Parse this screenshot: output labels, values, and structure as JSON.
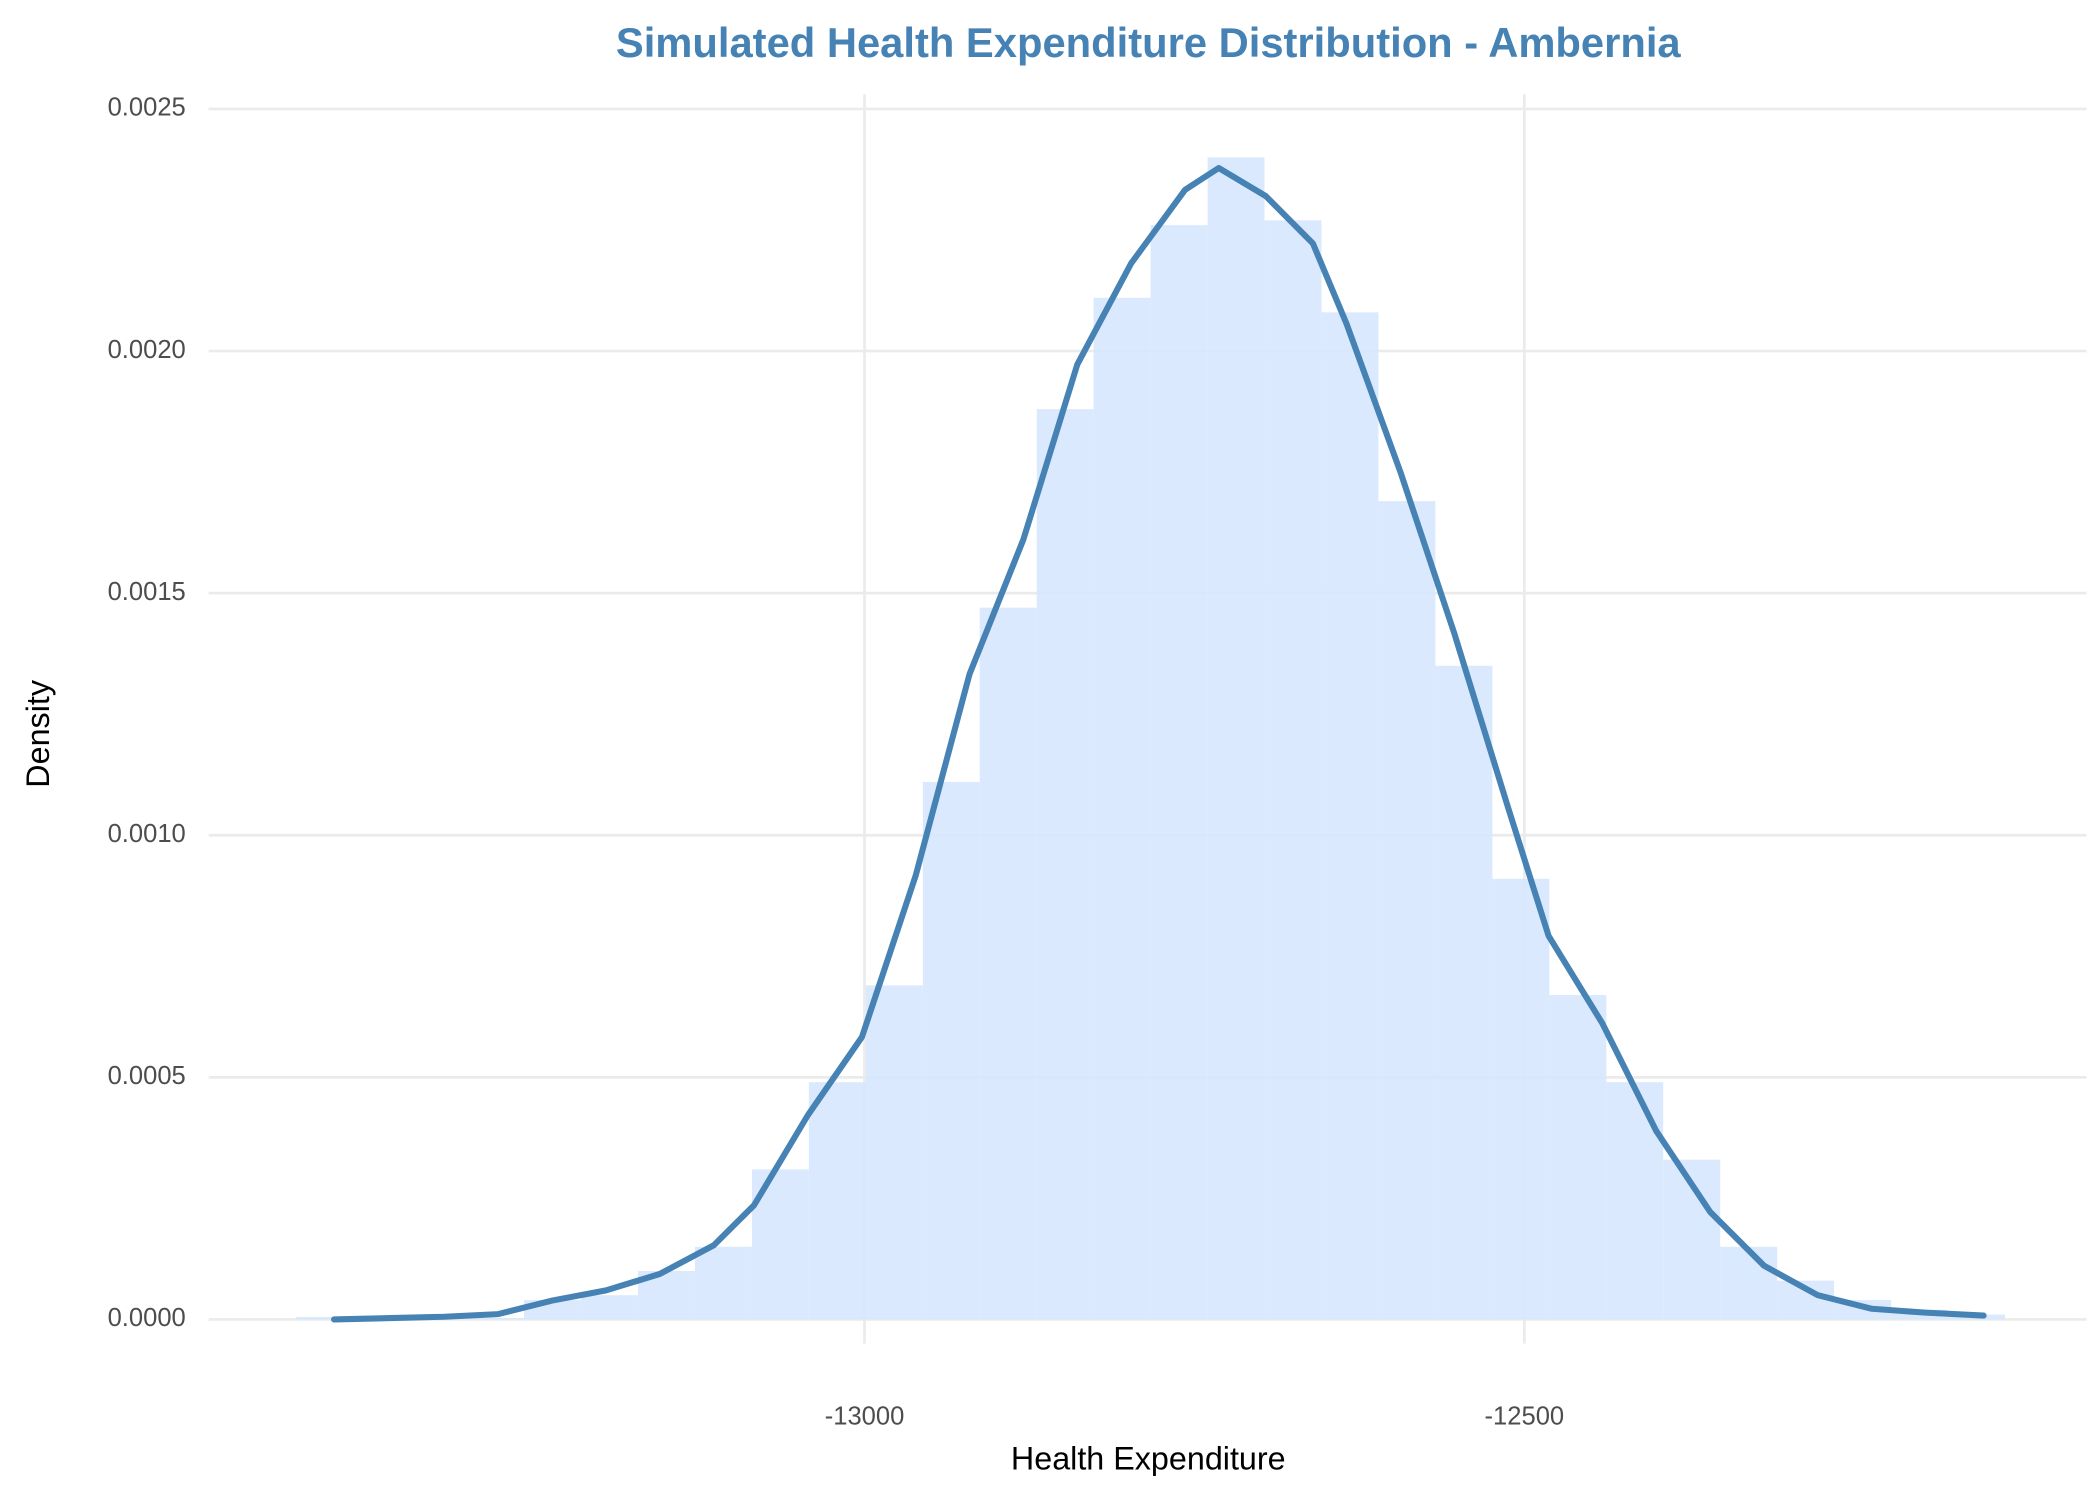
{
  "chart_data": {
    "type": "histogram",
    "title": "Simulated Health Expenditure Distribution - Ambernia",
    "x_label": "Health Expenditure",
    "y_label": "Density",
    "bins": [
      -13430.6,
      -13387.4,
      -13344.3,
      -13301.1,
      -13258.0,
      -13214.8,
      -13171.6,
      -13128.5,
      -13085.3,
      -13042.2,
      -12999.0,
      -12955.8,
      -12912.7,
      -12869.5,
      -12826.4,
      -12783.2,
      -12740.0,
      -12696.9,
      -12653.7,
      -12610.6,
      -12567.4,
      -12524.2,
      -12481.1,
      -12437.9,
      -12394.8,
      -12351.6,
      -12308.4,
      -12265.3,
      -12222.1,
      -12179.0,
      -12135.8
    ],
    "values": [
      5e-06,
      2e-06,
      3e-06,
      3e-06,
      4e-05,
      5e-05,
      0.0001,
      0.00015,
      0.00031,
      0.00049,
      0.00069,
      0.00111,
      0.00147,
      0.00188,
      0.00211,
      0.00226,
      0.0024,
      0.00227,
      0.00208,
      0.00169,
      0.00135,
      0.00091,
      0.00067,
      0.00049,
      0.00033,
      0.00015,
      8e-05,
      4e-05,
      2e-05,
      1e-05
    ],
    "color": "#d6e7fd",
    "line": {
      "color": "#4682b4",
      "x": [
        -13402.0,
        -13359.2,
        -13318.4,
        -13277.6,
        -13236.7,
        -13195.9,
        -13155.1,
        -13114.3,
        -13083.7,
        -13042.9,
        -13002.0,
        -12961.2,
        -12920.4,
        -12879.6,
        -12838.8,
        -12798.0,
        -12757.1,
        -12731.6,
        -12695.9,
        -12660.2,
        -12634.7,
        -12593.9,
        -12553.1,
        -12512.2,
        -12481.6,
        -12440.8,
        -12400.0,
        -12359.2,
        -12318.4,
        -12277.6,
        -12236.7,
        -12195.9,
        -12152.0
      ],
      "values": [
        0,
        2.8e-06,
        5.6e-06,
        1.1e-05,
        3.9e-05,
        6e-05,
        9.4e-05,
        0.000153,
        0.000236,
        0.000422,
        0.000583,
        0.000917,
        0.001333,
        0.001611,
        0.001972,
        0.002181,
        0.002333,
        0.002378,
        0.00232,
        0.002222,
        0.002056,
        0.00175,
        0.001417,
        0.001056,
        0.000792,
        0.000611,
        0.000389,
        0.000222,
        0.000111,
        5e-05,
        2.2e-05,
        1.4e-05,
        8e-06
      ]
    },
    "xlim": [
      -13497,
      -12074
    ],
    "ylim": [
      -5e-05,
      0.00253
    ],
    "xticks": [
      -13000,
      -12500
    ],
    "yticks": [
      {
        "value": 0,
        "label": "0.0000"
      },
      {
        "value": 0.0005,
        "label": "0.0005"
      },
      {
        "value": 0.001,
        "label": "0.0010"
      },
      {
        "value": 0.0015,
        "label": "0.0015"
      },
      {
        "value": 0.002,
        "label": "0.0020"
      },
      {
        "value": 0.0025,
        "label": "0.0025"
      }
    ],
    "grid": true
  }
}
